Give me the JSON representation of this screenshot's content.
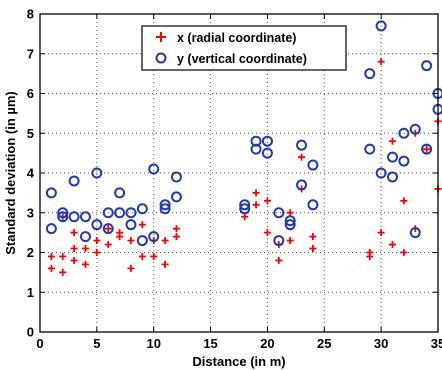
{
  "chart_data": {
    "type": "scatter",
    "title": "",
    "xlabel": "Distance (in m)",
    "ylabel": "Standard deviation (in µm)",
    "xlim": [
      0,
      35
    ],
    "ylim": [
      0,
      8
    ],
    "xticks": [
      "0",
      "5",
      "10",
      "15",
      "20",
      "25",
      "30",
      "35"
    ],
    "yticks": [
      "0",
      "1",
      "2",
      "3",
      "4",
      "5",
      "6",
      "7",
      "8"
    ],
    "grid": true,
    "legend_position": "top-center",
    "series": [
      {
        "name": "x (radial coordinate)",
        "marker": "plus",
        "color": "#ff0000",
        "points": [
          [
            1,
            1.6
          ],
          [
            1,
            1.9
          ],
          [
            2,
            1.5
          ],
          [
            2,
            1.9
          ],
          [
            2,
            2.9
          ],
          [
            3,
            1.8
          ],
          [
            3,
            2.1
          ],
          [
            3,
            2.5
          ],
          [
            4,
            1.7
          ],
          [
            4,
            2.1
          ],
          [
            5,
            2.0
          ],
          [
            5,
            2.3
          ],
          [
            6,
            2.2
          ],
          [
            6,
            2.6
          ],
          [
            7,
            2.4
          ],
          [
            7,
            2.5
          ],
          [
            8,
            1.6
          ],
          [
            8,
            2.3
          ],
          [
            9,
            1.9
          ],
          [
            9,
            2.7
          ],
          [
            10,
            1.9
          ],
          [
            10,
            2.3
          ],
          [
            11,
            1.7
          ],
          [
            11,
            2.3
          ],
          [
            12,
            2.4
          ],
          [
            12,
            2.6
          ],
          [
            18,
            2.9
          ],
          [
            19,
            3.2
          ],
          [
            19,
            3.5
          ],
          [
            20,
            2.5
          ],
          [
            20,
            3.3
          ],
          [
            21,
            1.8
          ],
          [
            21,
            2.2
          ],
          [
            22,
            2.3
          ],
          [
            22,
            3.0
          ],
          [
            23,
            3.6
          ],
          [
            23,
            4.4
          ],
          [
            24,
            2.1
          ],
          [
            24,
            2.4
          ],
          [
            29,
            1.9
          ],
          [
            29,
            2.0
          ],
          [
            30,
            2.5
          ],
          [
            30,
            6.8
          ],
          [
            31,
            2.2
          ],
          [
            31,
            4.8
          ],
          [
            32,
            2.0
          ],
          [
            32,
            3.3
          ],
          [
            33,
            2.6
          ],
          [
            33,
            5.0
          ],
          [
            34,
            4.6
          ],
          [
            35,
            3.6
          ],
          [
            35,
            5.3
          ]
        ]
      },
      {
        "name": "y (vertical coordinate)",
        "marker": "circle",
        "color": "#1f3bb3",
        "points": [
          [
            1,
            2.6
          ],
          [
            1,
            3.5
          ],
          [
            2,
            2.9
          ],
          [
            2,
            3.0
          ],
          [
            3,
            2.9
          ],
          [
            3,
            3.8
          ],
          [
            4,
            2.4
          ],
          [
            4,
            2.9
          ],
          [
            5,
            2.7
          ],
          [
            5,
            4.0
          ],
          [
            6,
            2.6
          ],
          [
            6,
            3.0
          ],
          [
            7,
            3.0
          ],
          [
            7,
            3.5
          ],
          [
            8,
            2.7
          ],
          [
            8,
            3.0
          ],
          [
            9,
            2.3
          ],
          [
            9,
            3.1
          ],
          [
            10,
            2.4
          ],
          [
            10,
            4.1
          ],
          [
            11,
            3.1
          ],
          [
            11,
            3.2
          ],
          [
            12,
            3.4
          ],
          [
            12,
            3.9
          ],
          [
            18,
            3.1
          ],
          [
            18,
            3.2
          ],
          [
            19,
            4.6
          ],
          [
            19,
            4.8
          ],
          [
            20,
            4.5
          ],
          [
            20,
            4.8
          ],
          [
            21,
            2.3
          ],
          [
            21,
            3.0
          ],
          [
            22,
            2.7
          ],
          [
            22,
            2.8
          ],
          [
            23,
            3.7
          ],
          [
            23,
            4.7
          ],
          [
            24,
            3.2
          ],
          [
            24,
            4.2
          ],
          [
            29,
            4.6
          ],
          [
            29,
            6.5
          ],
          [
            30,
            4.0
          ],
          [
            30,
            7.7
          ],
          [
            31,
            3.9
          ],
          [
            31,
            4.4
          ],
          [
            32,
            4.3
          ],
          [
            32,
            5.0
          ],
          [
            33,
            2.5
          ],
          [
            33,
            5.1
          ],
          [
            34,
            4.6
          ],
          [
            34,
            6.7
          ],
          [
            35,
            5.6
          ],
          [
            35,
            6.0
          ]
        ]
      }
    ]
  }
}
